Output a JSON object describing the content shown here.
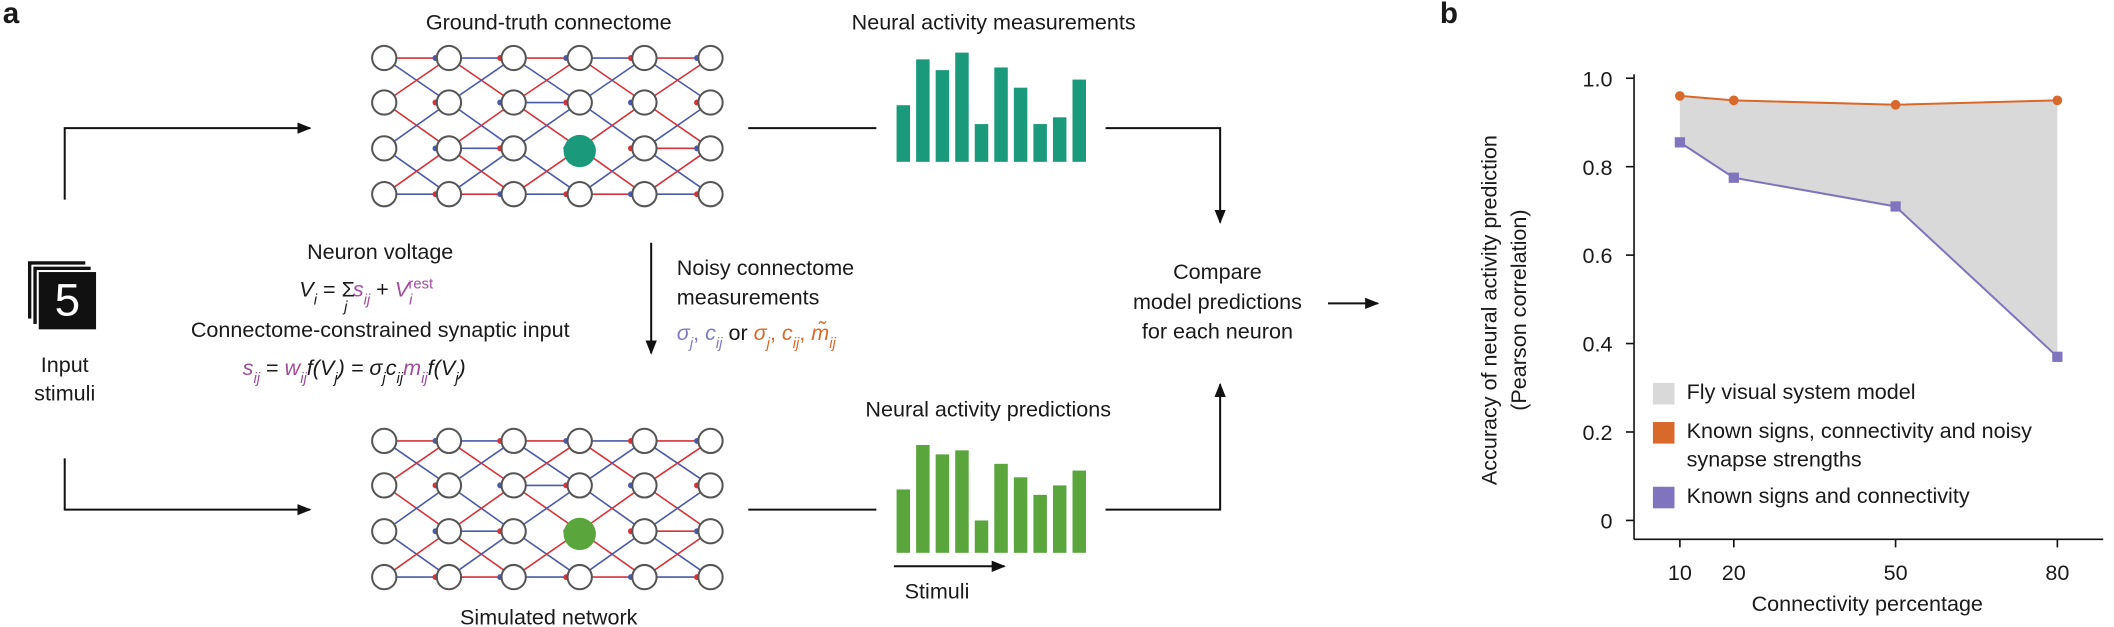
{
  "panel_labels": [
    "a",
    "b"
  ],
  "diagram": {
    "ground_truth_title": "Ground-truth connectome",
    "measurements_title": "Neural activity measurements",
    "simulated_title": "Simulated network",
    "predictions_title": "Neural activity predictions",
    "stimulus_digit": "5",
    "input_label": [
      "Input",
      "stimuli"
    ],
    "neuron_voltage": "Neuron voltage",
    "voltage_equation": [
      "V",
      "i",
      " = ",
      "Σ",
      "j",
      "s",
      "ij",
      " + ",
      "V",
      "i",
      "rest"
    ],
    "synaptic_title": "Connectome-constrained synaptic input",
    "synaptic_equation": [
      "s",
      "ij",
      " = ",
      "w",
      "ij",
      "f(V",
      "j",
      ") = σ",
      "j",
      "c",
      "ij",
      "m",
      "ij",
      "f(V",
      "j",
      ")"
    ],
    "noisy_title": [
      "Noisy connectome",
      "measurements"
    ],
    "noisy_terms": [
      "σ",
      "j",
      ", ",
      "c",
      "ij",
      " or ",
      "σ",
      "j",
      ", ",
      "c",
      "ij",
      ", ",
      "m̃",
      "ij"
    ],
    "compare": [
      "Compare",
      "model predictions",
      "for each neuron"
    ],
    "stimuli_label": "Stimuli",
    "measured_activity": [
      42,
      76,
      68,
      81,
      28,
      70,
      55,
      28,
      33,
      61
    ],
    "predicted_activity": [
      47,
      80,
      73,
      76,
      24,
      66,
      56,
      43,
      50,
      61
    ]
  },
  "chart_data": {
    "type": "line",
    "x": [
      10,
      20,
      50,
      80
    ],
    "series": [
      {
        "name": "Known signs, connectivity and noisy synapse strengths",
        "color": "#d8692b",
        "marker": "circle",
        "values": [
          0.96,
          0.95,
          0.94,
          0.95
        ]
      },
      {
        "name": "Known signs and connectivity",
        "color": "#7f74bd",
        "marker": "square",
        "values": [
          0.855,
          0.775,
          0.71,
          0.37
        ]
      }
    ],
    "band": {
      "name": "Fly visual system model",
      "color": "#d9d9d9"
    },
    "xlabel": "Connectivity percentage",
    "ylabel": "Accuracy of neural activity prediction",
    "ylabel_note": "(Pearson correlation)",
    "xlim": [
      1.5,
      88.5
    ],
    "ylim": [
      -0.04,
      1.0
    ],
    "xticks": [
      10,
      20,
      50,
      80
    ],
    "yticks": [
      0,
      0.2,
      0.4,
      0.6,
      0.8,
      {
        "value": 1,
        "label": "1.0"
      }
    ],
    "grid": false
  }
}
